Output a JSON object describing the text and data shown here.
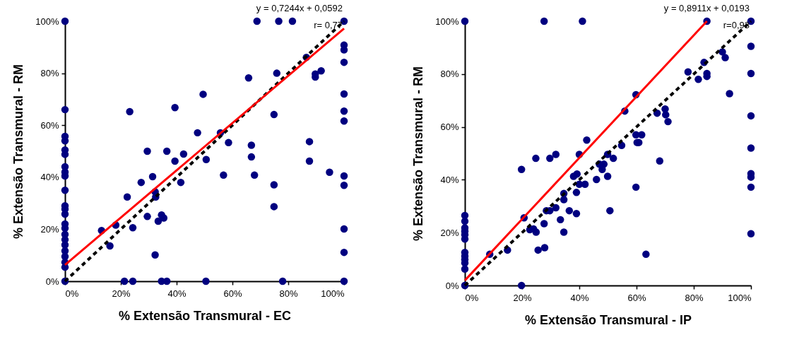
{
  "chart_data": [
    {
      "type": "scatter",
      "xlabel": "% Extensão Transmural - EC",
      "ylabel": "% Extensão Transmural - RM",
      "annotations": [
        "y = 0,7244x + 0,0592",
        "r= 0,77"
      ],
      "xlim": [
        0,
        100
      ],
      "ylim": [
        0,
        100
      ],
      "xticks": [
        {
          "value": 0,
          "label": "0%"
        },
        {
          "value": 20,
          "label": "20%"
        },
        {
          "value": 40,
          "label": "40%"
        },
        {
          "value": 60,
          "label": "60%"
        },
        {
          "value": 80,
          "label": "80%"
        },
        {
          "value": 100,
          "label": "100%"
        }
      ],
      "yticks": [
        {
          "value": 0,
          "label": "0%"
        },
        {
          "value": 20,
          "label": "20%"
        },
        {
          "value": 40,
          "label": "40%"
        },
        {
          "value": 60,
          "label": "60%"
        },
        {
          "value": 80,
          "label": "80%"
        },
        {
          "value": 100,
          "label": "100%"
        }
      ],
      "series": [
        {
          "type": "scatter",
          "marker": "circle",
          "color": "#000080",
          "x": [
            0,
            0,
            0,
            0,
            0,
            0,
            0,
            0,
            0,
            0,
            0,
            0,
            0,
            0,
            0,
            0,
            0,
            0,
            0,
            0,
            0,
            0,
            0,
            23.2,
            29.5,
            36.5,
            39.4,
            47.5,
            49.5,
            42.5,
            39.4,
            50.6,
            31.4,
            27.3,
            41.5,
            32.3,
            32.5,
            22.3,
            29.5,
            34.6,
            35.4,
            33.4,
            18.2,
            13.1,
            24.3,
            16.1,
            32.3,
            21.3,
            24.3,
            34.6,
            36.5,
            50.5,
            68.8,
            76.6,
            81.5,
            100,
            100,
            100,
            100,
            100,
            100,
            100,
            100,
            100,
            100,
            100,
            100,
            86.5,
            89.7,
            91.8,
            89.7,
            75.9,
            65.8,
            74.9,
            55.7,
            58.6,
            66.8,
            66.8,
            87.6,
            87.6,
            56.8,
            67.9,
            94.8,
            74.9,
            74.9,
            78
          ],
          "values": [
            100,
            66,
            55.7,
            54,
            50.5,
            48.8,
            44,
            42,
            40.5,
            35,
            29,
            27.7,
            25.8,
            22,
            20.4,
            18,
            16,
            14,
            11.7,
            9.5,
            7.3,
            5.4,
            0,
            65.2,
            50,
            50,
            66.8,
            57.1,
            71.9,
            48.9,
            46.2,
            46.8,
            40.2,
            38,
            38,
            34.4,
            32.4,
            32.4,
            24.9,
            25.5,
            24.3,
            23.1,
            21.6,
            19.5,
            20.6,
            13.6,
            10.1,
            0,
            0,
            0,
            0,
            0,
            100,
            100,
            100,
            100,
            90.8,
            89,
            84.2,
            72,
            65.4,
            61.6,
            40.5,
            36.9,
            20.1,
            11.1,
            0,
            86.1,
            79.7,
            80.9,
            78.5,
            80,
            78.2,
            64.1,
            57.1,
            53.3,
            52.3,
            47.8,
            53.7,
            46.2,
            40.8,
            40.8,
            41.9,
            37.1,
            28.7,
            0
          ]
        },
        {
          "type": "line",
          "color": "#000000",
          "line_style": "dashed",
          "x": [
            0,
            100
          ],
          "values": [
            0,
            100
          ]
        },
        {
          "type": "line",
          "color": "#ff0000",
          "line_style": "solid",
          "x": [
            0,
            100
          ],
          "values": [
            6.3,
            97.2
          ]
        }
      ]
    },
    {
      "type": "scatter",
      "xlabel": "% Extensão Transmural - IP",
      "ylabel": "% Extensão Transmural - RM",
      "annotations": [
        "y = 0,8911x + 0,0193",
        "r=0,93"
      ],
      "xlim": [
        0,
        100
      ],
      "ylim": [
        0,
        100
      ],
      "xticks": [
        {
          "value": 0,
          "label": "0%"
        },
        {
          "value": 20,
          "label": "20%"
        },
        {
          "value": 40,
          "label": "40%"
        },
        {
          "value": 60,
          "label": "60%"
        },
        {
          "value": 80,
          "label": "80%"
        },
        {
          "value": 100,
          "label": "100%"
        }
      ],
      "yticks": [
        {
          "value": 0,
          "label": "0%"
        },
        {
          "value": 20,
          "label": "20%"
        },
        {
          "value": 40,
          "label": "40%"
        },
        {
          "value": 60,
          "label": "60%"
        },
        {
          "value": 80,
          "label": "80%"
        },
        {
          "value": 100,
          "label": "100%"
        }
      ],
      "series": [
        {
          "type": "scatter",
          "marker": "circle",
          "color": "#000080",
          "x": [
            0,
            0,
            0,
            0,
            0,
            0,
            0,
            0,
            0,
            0,
            0,
            0,
            0,
            27.7,
            41.1,
            19.8,
            24.8,
            29.7,
            31.8,
            40,
            42.6,
            20.7,
            8.7,
            14.9,
            19.8,
            22.7,
            24,
            24.9,
            27.7,
            25.6,
            27.9,
            28.5,
            29.7,
            31.8,
            33.4,
            34.6,
            34.6,
            34.6,
            36.5,
            39,
            39,
            38,
            39.2,
            40,
            42,
            46,
            49.9,
            50.7,
            47,
            48.6,
            48,
            49.9,
            51.9,
            54.8,
            55.9,
            59.8,
            59.8,
            61.8,
            60.2,
            60.8,
            59.8,
            63.3,
            67.2,
            70,
            70.2,
            71,
            68.1,
            78,
            81.6,
            83.6,
            84.6,
            84.6,
            84.6,
            90,
            91,
            92.5,
            100,
            100,
            100,
            100,
            100,
            100,
            100,
            100,
            100
          ],
          "values": [
            100,
            26.5,
            24.3,
            21.8,
            20.5,
            19.2,
            17.6,
            12.5,
            11.1,
            9.8,
            8.5,
            6.2,
            0,
            100,
            100,
            43.9,
            48.1,
            48.1,
            49.6,
            49.6,
            55,
            25.6,
            11.8,
            13.4,
            0,
            21.1,
            21.4,
            20.2,
            23.4,
            13.4,
            14.3,
            28.3,
            28.3,
            29.4,
            24.9,
            20.2,
            32.5,
            34.8,
            28.3,
            27.2,
            35.2,
            41.3,
            42.2,
            38.3,
            38.3,
            40.1,
            41.3,
            28.3,
            45.9,
            45.9,
            43.9,
            49.6,
            48.1,
            53,
            66,
            72.2,
            57,
            57,
            54.1,
            54.1,
            37.2,
            11.8,
            65.2,
            66.8,
            64.6,
            62,
            47.1,
            80.8,
            78,
            84.4,
            80.2,
            79.1,
            100,
            88.4,
            86.2,
            72.6,
            100,
            90.5,
            80.2,
            64.2,
            52,
            42.3,
            41,
            37.2,
            19.6
          ]
        },
        {
          "type": "line",
          "color": "#000000",
          "line_style": "dashed",
          "x": [
            0,
            100
          ],
          "values": [
            0,
            100
          ]
        },
        {
          "type": "line",
          "color": "#ff0000",
          "line_style": "solid",
          "x": [
            0,
            84.6
          ],
          "values": [
            1.9,
            100
          ]
        }
      ]
    }
  ]
}
